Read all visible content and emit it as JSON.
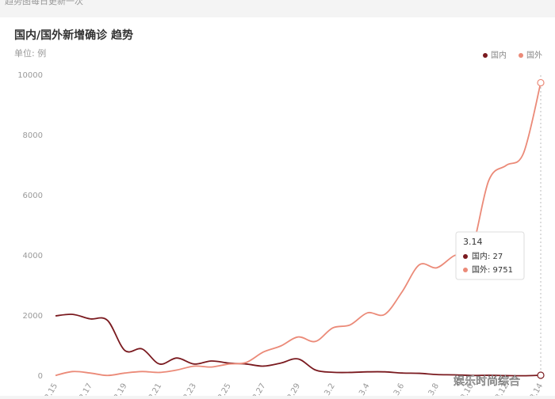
{
  "header": {
    "note": "趋势图每日更新一次"
  },
  "chart_data": {
    "type": "line",
    "title": "国内/国外新增确诊 趋势",
    "unit": "单位: 例",
    "categories": [
      "2.15",
      null,
      "2.17",
      null,
      "2.19",
      null,
      "2.21",
      null,
      "2.23",
      null,
      "2.25",
      null,
      "2.27",
      null,
      "2.29",
      null,
      "3.2",
      null,
      "3.4",
      null,
      "3.6",
      null,
      "3.8",
      null,
      "3.10",
      null,
      "3.12",
      null,
      "3.14"
    ],
    "series": [
      {
        "name": "国内",
        "color": "#7a1a1f",
        "values": [
          2000,
          2050,
          1900,
          1850,
          850,
          900,
          400,
          600,
          400,
          500,
          430,
          400,
          330,
          430,
          570,
          200,
          125,
          120,
          140,
          140,
          100,
          90,
          50,
          40,
          20,
          25,
          15,
          10,
          27
        ]
      },
      {
        "name": "国外",
        "color": "#eb8a78",
        "values": [
          20,
          150,
          100,
          20,
          100,
          150,
          120,
          200,
          330,
          300,
          400,
          450,
          800,
          1000,
          1300,
          1150,
          1600,
          1700,
          2100,
          2050,
          2800,
          3700,
          3600,
          4000,
          4200,
          6500,
          7000,
          7400,
          9751
        ]
      }
    ],
    "ylim": [
      0,
      10000
    ],
    "yticks": [
      0,
      2000,
      4000,
      6000,
      8000,
      10000
    ],
    "grid": false,
    "legend": "top-right",
    "tooltip": {
      "title": "3.14",
      "items": [
        "国内: 27",
        "国外: 9751"
      ]
    },
    "watermark": "娱乐时尚综合"
  }
}
